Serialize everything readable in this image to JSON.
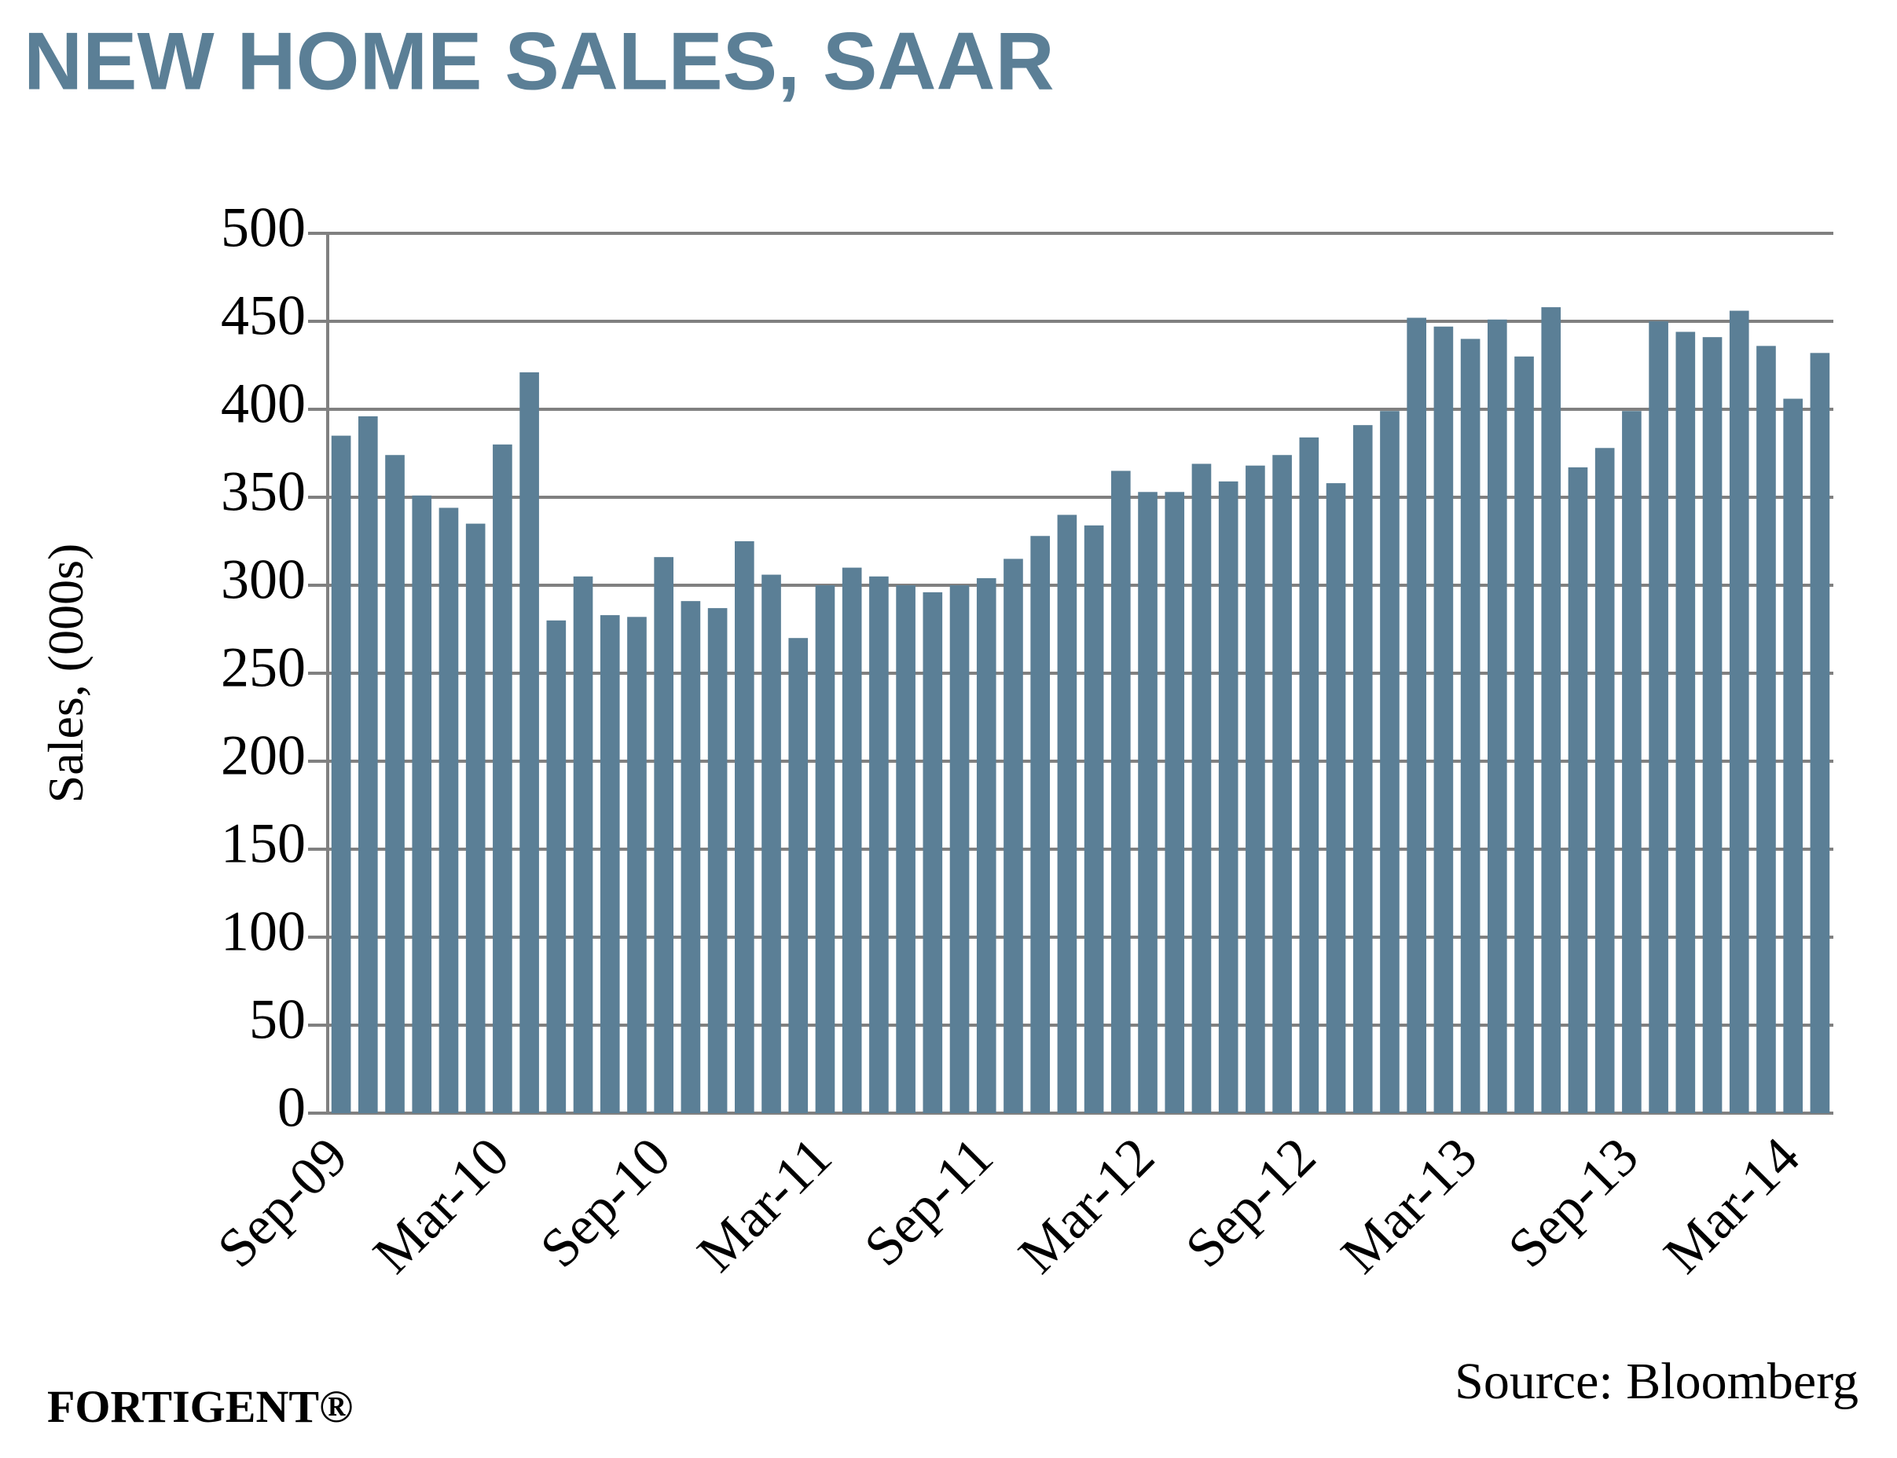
{
  "chart_data": {
    "type": "bar",
    "title": "NEW HOME SALES, SAAR",
    "y_label": "Sales, (000s)",
    "source": "Source: Bloomberg",
    "brand": "FORTIGENT®",
    "categories": [
      "Sep-09",
      null,
      null,
      null,
      null,
      null,
      "Mar-10",
      null,
      null,
      null,
      null,
      null,
      "Sep-10",
      null,
      null,
      null,
      null,
      null,
      "Mar-11",
      null,
      null,
      null,
      null,
      null,
      "Sep-11",
      null,
      null,
      null,
      null,
      null,
      "Mar-12",
      null,
      null,
      null,
      null,
      null,
      "Sep-12",
      null,
      null,
      null,
      null,
      null,
      "Mar-13",
      null,
      null,
      null,
      null,
      null,
      "Sep-13",
      null,
      null,
      null,
      null,
      null,
      "Mar-14",
      null
    ],
    "values": [
      385,
      396,
      374,
      351,
      344,
      335,
      380,
      421,
      280,
      305,
      283,
      282,
      316,
      291,
      287,
      325,
      306,
      270,
      300,
      310,
      305,
      300,
      296,
      300,
      304,
      315,
      328,
      340,
      334,
      365,
      353,
      353,
      369,
      359,
      368,
      374,
      384,
      358,
      391,
      399,
      452,
      447,
      440,
      451,
      430,
      458,
      367,
      378,
      399,
      450,
      444,
      441,
      456,
      436,
      406,
      432
    ],
    "color": "#5b7f96",
    "ylim": [
      0,
      500
    ],
    "yticks": [
      0,
      50,
      100,
      150,
      200,
      250,
      300,
      350,
      400,
      450,
      500
    ],
    "grid": true
  }
}
